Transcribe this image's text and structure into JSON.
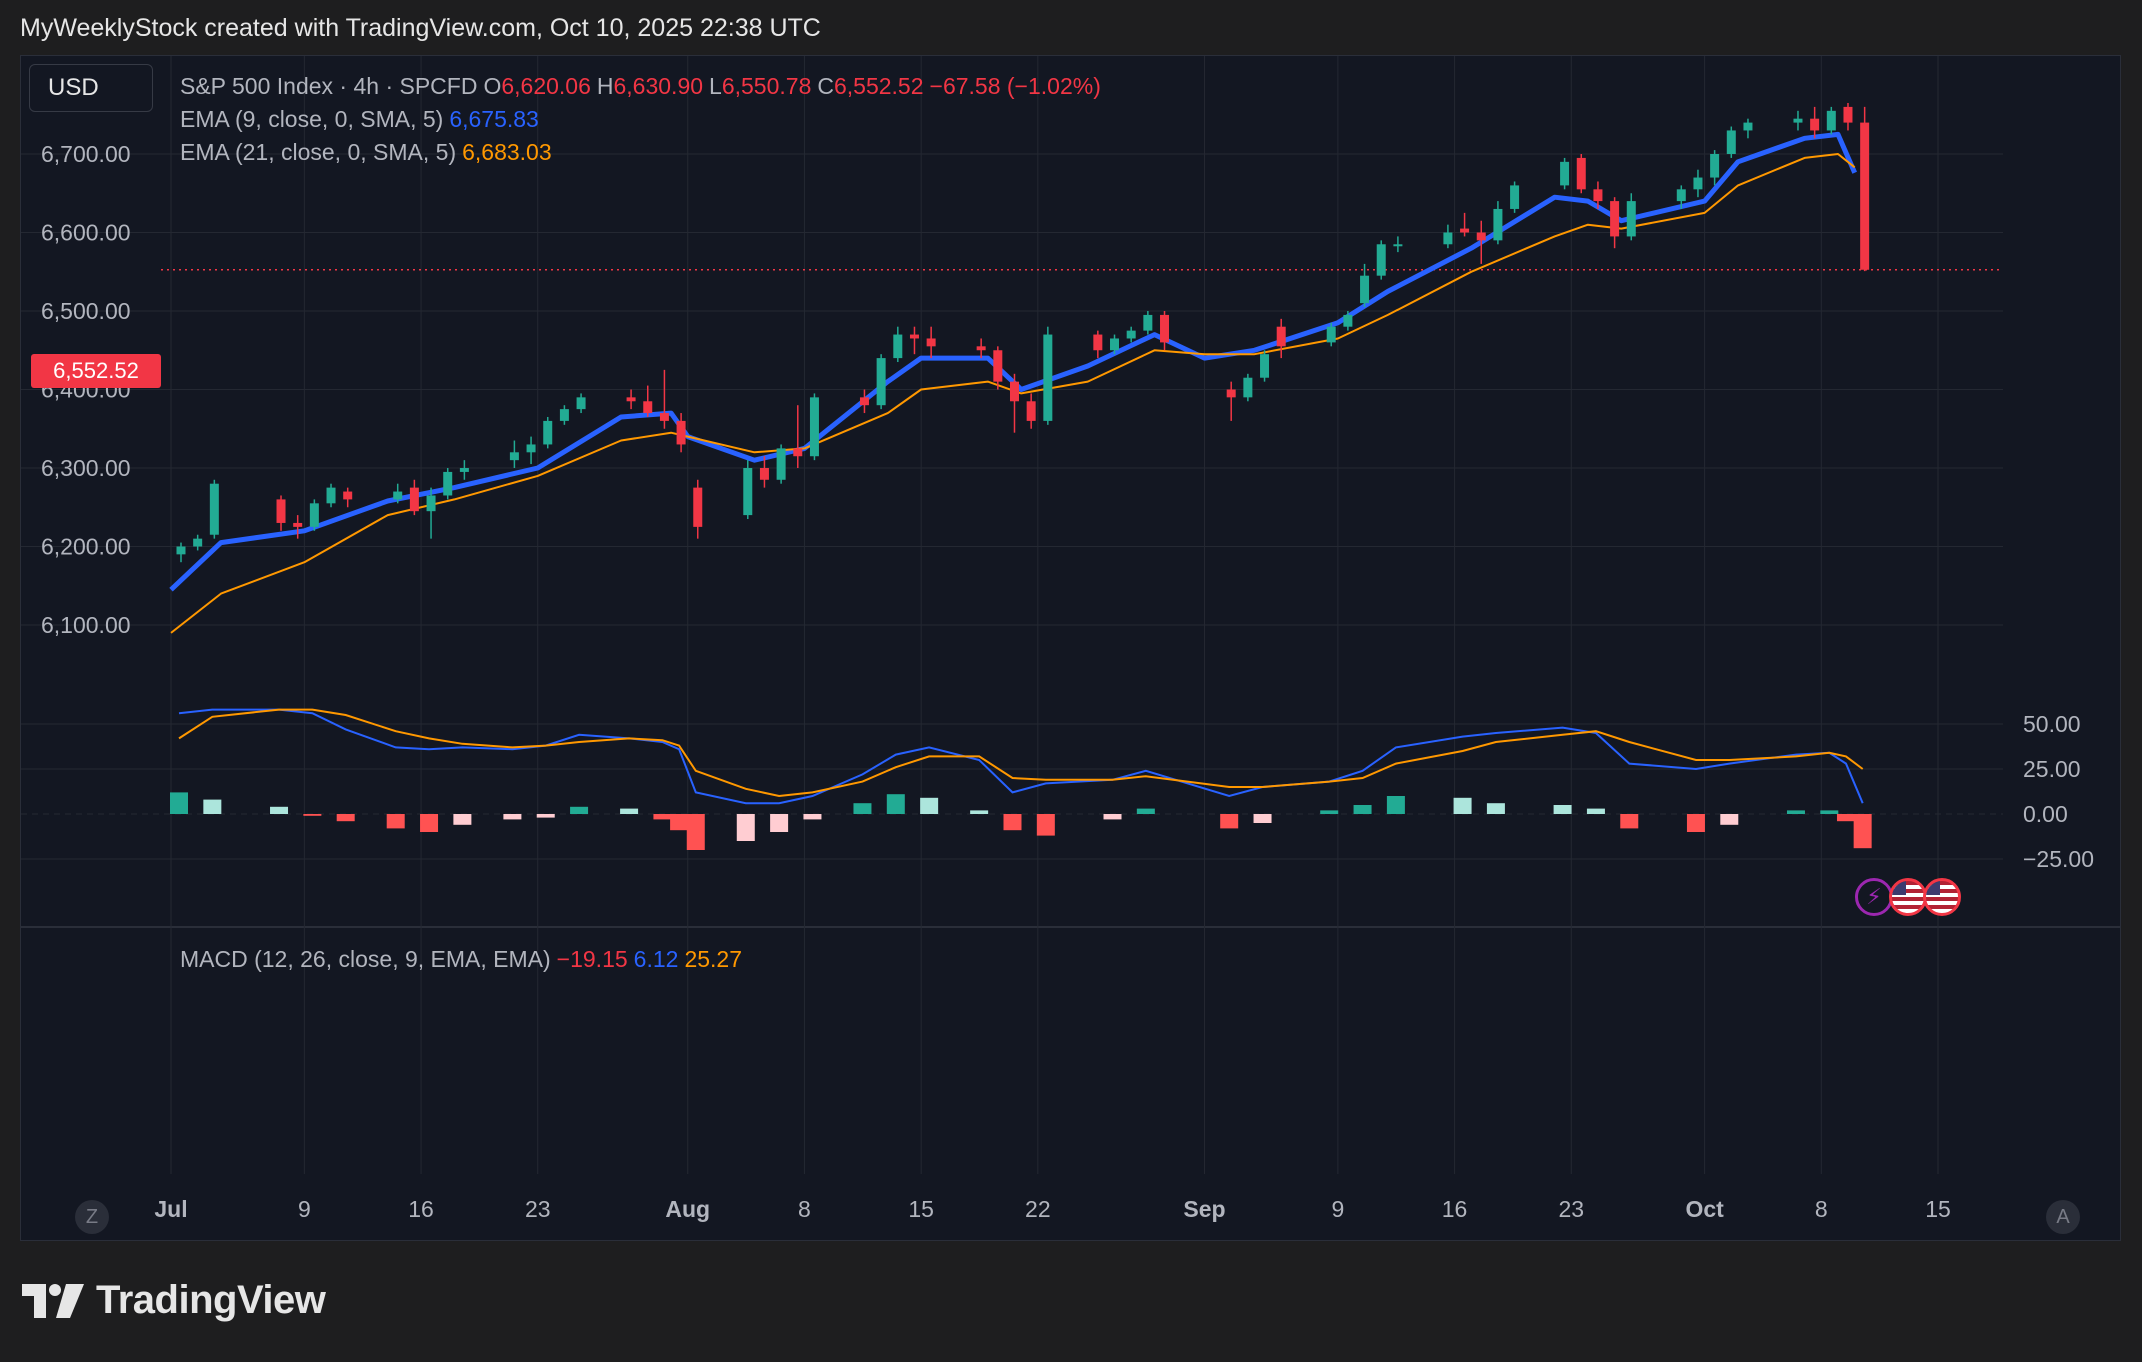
{
  "header": {
    "text": "MyWeeklyStock created with TradingView.com, Oct 10, 2025 22:38 UTC"
  },
  "brand": {
    "name": "TradingView"
  },
  "currency_button": "USD",
  "legend": {
    "symbol": "S&P 500 Index · 4h · SPCFD",
    "o_label": "O",
    "o": "6,620.06",
    "h_label": "H",
    "h": "6,630.90",
    "l_label": "L",
    "l": "6,550.78",
    "c_label": "C",
    "c": "6,552.52",
    "change": "−67.58 (−1.02%)",
    "ema9_label": "EMA (9, close, 0, SMA, 5)",
    "ema9_value": "6,675.83",
    "ema21_label": "EMA (21, close, 0, SMA, 5)",
    "ema21_value": "6,683.03",
    "macd_label": "MACD (12, 26, close, 9, EMA, EMA)",
    "macd_hist": "−19.15",
    "macd_line": "6.12",
    "macd_signal": "25.27"
  },
  "last_price_tag": "6,552.52",
  "scale_buttons": {
    "left": "Z",
    "right": "A"
  },
  "colors": {
    "up": "#22ab94",
    "down": "#f23645",
    "ema9": "#2962ff",
    "ema21": "#ff9800",
    "macd": "#2962ff",
    "signal": "#ff9800",
    "hist_up_strong": "#22ab94",
    "hist_up_weak": "#acE5dc",
    "hist_down_strong": "#ff5252",
    "hist_down_weak": "#ffcdd2",
    "grid": "#242832",
    "bg": "#131722"
  },
  "chart_data": [
    {
      "type": "candlestick",
      "title": "S&P 500 Index · 4h · SPCFD",
      "x_date_range": [
        "2025-07-01",
        "2025-10-10"
      ],
      "ylim": [
        6060,
        6770
      ],
      "yticks": [
        "6,100.00",
        "6,200.00",
        "6,300.00",
        "6,400.00",
        "6,500.00",
        "6,600.00",
        "6,700.00"
      ],
      "ytick_values": [
        6100,
        6200,
        6300,
        6400,
        6500,
        6600,
        6700
      ],
      "xticks": [
        "Jul",
        "9",
        "16",
        "23",
        "Aug",
        "8",
        "15",
        "22",
        "Sep",
        "9",
        "16",
        "23",
        "Oct",
        "8",
        "15"
      ],
      "xtick_dates": [
        "2025-07-01",
        "2025-07-09",
        "2025-07-16",
        "2025-07-23",
        "2025-08-01",
        "2025-08-08",
        "2025-08-15",
        "2025-08-22",
        "2025-09-01",
        "2025-09-09",
        "2025-09-16",
        "2025-09-23",
        "2025-10-01",
        "2025-10-08",
        "2025-10-15"
      ],
      "last_price": 6552.52,
      "candles": [
        [
          "2025-07-01",
          6190,
          6205,
          6180,
          6200
        ],
        [
          "2025-07-02",
          6200,
          6215,
          6195,
          6210
        ],
        [
          "2025-07-03",
          6215,
          6285,
          6210,
          6280
        ],
        [
          "2025-07-07",
          6260,
          6265,
          6220,
          6230
        ],
        [
          "2025-07-08",
          6230,
          6240,
          6210,
          6225
        ],
        [
          "2025-07-09",
          6225,
          6260,
          6220,
          6255
        ],
        [
          "2025-07-10",
          6255,
          6280,
          6250,
          6275
        ],
        [
          "2025-07-11",
          6270,
          6275,
          6250,
          6260
        ],
        [
          "2025-07-14",
          6260,
          6280,
          6255,
          6270
        ],
        [
          "2025-07-15",
          6275,
          6285,
          6240,
          6245
        ],
        [
          "2025-07-16",
          6245,
          6275,
          6210,
          6265
        ],
        [
          "2025-07-17",
          6265,
          6300,
          6260,
          6295
        ],
        [
          "2025-07-18",
          6295,
          6310,
          6285,
          6300
        ],
        [
          "2025-07-21",
          6310,
          6335,
          6300,
          6320
        ],
        [
          "2025-07-22",
          6320,
          6340,
          6305,
          6330
        ],
        [
          "2025-07-23",
          6330,
          6365,
          6325,
          6360
        ],
        [
          "2025-07-24",
          6360,
          6380,
          6355,
          6375
        ],
        [
          "2025-07-25",
          6375,
          6395,
          6370,
          6390
        ],
        [
          "2025-07-28",
          6390,
          6400,
          6375,
          6385
        ],
        [
          "2025-07-29",
          6385,
          6405,
          6365,
          6370
        ],
        [
          "2025-07-30",
          6370,
          6425,
          6350,
          6360
        ],
        [
          "2025-07-31",
          6360,
          6370,
          6320,
          6330
        ],
        [
          "2025-08-01",
          6275,
          6285,
          6210,
          6225
        ],
        [
          "2025-08-04",
          6240,
          6310,
          6235,
          6300
        ],
        [
          "2025-08-05",
          6300,
          6315,
          6275,
          6285
        ],
        [
          "2025-08-06",
          6285,
          6330,
          6280,
          6325
        ],
        [
          "2025-08-07",
          6325,
          6380,
          6300,
          6315
        ],
        [
          "2025-08-08",
          6315,
          6395,
          6310,
          6390
        ],
        [
          "2025-08-11",
          6390,
          6400,
          6370,
          6380
        ],
        [
          "2025-08-12",
          6380,
          6445,
          6375,
          6440
        ],
        [
          "2025-08-13",
          6440,
          6480,
          6435,
          6470
        ],
        [
          "2025-08-14",
          6470,
          6480,
          6445,
          6465
        ],
        [
          "2025-08-15",
          6465,
          6480,
          6440,
          6455
        ],
        [
          "2025-08-18",
          6455,
          6465,
          6440,
          6450
        ],
        [
          "2025-08-19",
          6450,
          6455,
          6400,
          6410
        ],
        [
          "2025-08-20",
          6410,
          6420,
          6345,
          6385
        ],
        [
          "2025-08-21",
          6385,
          6395,
          6350,
          6360
        ],
        [
          "2025-08-22",
          6360,
          6480,
          6355,
          6470
        ],
        [
          "2025-08-25",
          6470,
          6475,
          6440,
          6450
        ],
        [
          "2025-08-26",
          6450,
          6470,
          6445,
          6465
        ],
        [
          "2025-08-27",
          6465,
          6480,
          6460,
          6475
        ],
        [
          "2025-08-28",
          6475,
          6500,
          6470,
          6495
        ],
        [
          "2025-08-29",
          6495,
          6500,
          6450,
          6460
        ],
        [
          "2025-09-02",
          6400,
          6410,
          6360,
          6390
        ],
        [
          "2025-09-03",
          6390,
          6420,
          6385,
          6415
        ],
        [
          "2025-09-04",
          6415,
          6450,
          6410,
          6445
        ],
        [
          "2025-09-05",
          6480,
          6490,
          6440,
          6455
        ],
        [
          "2025-09-08",
          6460,
          6485,
          6455,
          6480
        ],
        [
          "2025-09-09",
          6480,
          6500,
          6475,
          6495
        ],
        [
          "2025-09-10",
          6510,
          6560,
          6505,
          6545
        ],
        [
          "2025-09-11",
          6545,
          6590,
          6540,
          6585
        ],
        [
          "2025-09-12",
          6585,
          6595,
          6575,
          6585
        ],
        [
          "2025-09-15",
          6585,
          6610,
          6580,
          6600
        ],
        [
          "2025-09-16",
          6605,
          6625,
          6595,
          6600
        ],
        [
          "2025-09-17",
          6600,
          6615,
          6560,
          6590
        ],
        [
          "2025-09-18",
          6590,
          6640,
          6585,
          6630
        ],
        [
          "2025-09-19",
          6630,
          6665,
          6625,
          6660
        ],
        [
          "2025-09-22",
          6660,
          6695,
          6655,
          6690
        ],
        [
          "2025-09-23",
          6695,
          6700,
          6650,
          6655
        ],
        [
          "2025-09-24",
          6655,
          6665,
          6630,
          6640
        ],
        [
          "2025-09-25",
          6640,
          6645,
          6580,
          6595
        ],
        [
          "2025-09-26",
          6595,
          6650,
          6590,
          6640
        ],
        [
          "2025-09-29",
          6640,
          6660,
          6630,
          6655
        ],
        [
          "2025-09-30",
          6655,
          6680,
          6645,
          6670
        ],
        [
          "2025-10-01",
          6670,
          6705,
          6660,
          6700
        ],
        [
          "2025-10-02",
          6700,
          6735,
          6695,
          6730
        ],
        [
          "2025-10-03",
          6730,
          6745,
          6720,
          6740
        ],
        [
          "2025-10-06",
          6740,
          6755,
          6730,
          6745
        ],
        [
          "2025-10-07",
          6745,
          6760,
          6720,
          6730
        ],
        [
          "2025-10-08",
          6730,
          6760,
          6725,
          6755
        ],
        [
          "2025-10-09",
          6760,
          6765,
          6730,
          6740
        ],
        [
          "2025-10-10",
          6740,
          6760,
          6550.78,
          6552.52
        ]
      ],
      "series": [
        {
          "name": "EMA (9, close, 0, SMA, 5)",
          "color": "#2962ff",
          "x": [
            "2025-07-01",
            "2025-07-04",
            "2025-07-09",
            "2025-07-14",
            "2025-07-18",
            "2025-07-23",
            "2025-07-28",
            "2025-07-31",
            "2025-08-01",
            "2025-08-05",
            "2025-08-08",
            "2025-08-13",
            "2025-08-15",
            "2025-08-19",
            "2025-08-21",
            "2025-08-25",
            "2025-08-29",
            "2025-09-01",
            "2025-09-04",
            "2025-09-09",
            "2025-09-12",
            "2025-09-17",
            "2025-09-22",
            "2025-09-24",
            "2025-09-26",
            "2025-10-01",
            "2025-10-03",
            "2025-10-07",
            "2025-10-09",
            "2025-10-10"
          ],
          "values": [
            6145,
            6205,
            6220,
            6258,
            6275,
            6300,
            6365,
            6370,
            6340,
            6310,
            6325,
            6410,
            6440,
            6440,
            6400,
            6430,
            6470,
            6440,
            6450,
            6485,
            6525,
            6580,
            6645,
            6640,
            6615,
            6640,
            6690,
            6720,
            6725,
            6676
          ]
        },
        {
          "name": "EMA (21, close, 0, SMA, 5)",
          "color": "#ff9800",
          "x": [
            "2025-07-01",
            "2025-07-04",
            "2025-07-09",
            "2025-07-14",
            "2025-07-18",
            "2025-07-23",
            "2025-07-28",
            "2025-07-31",
            "2025-08-01",
            "2025-08-05",
            "2025-08-08",
            "2025-08-13",
            "2025-08-15",
            "2025-08-19",
            "2025-08-21",
            "2025-08-25",
            "2025-08-29",
            "2025-09-01",
            "2025-09-04",
            "2025-09-09",
            "2025-09-12",
            "2025-09-17",
            "2025-09-22",
            "2025-09-24",
            "2025-09-26",
            "2025-10-01",
            "2025-10-03",
            "2025-10-07",
            "2025-10-09",
            "2025-10-10"
          ],
          "values": [
            6090,
            6140,
            6180,
            6240,
            6260,
            6290,
            6335,
            6345,
            6340,
            6320,
            6325,
            6370,
            6400,
            6410,
            6395,
            6410,
            6450,
            6445,
            6445,
            6465,
            6495,
            6550,
            6595,
            6610,
            6605,
            6625,
            6660,
            6695,
            6700,
            6683
          ]
        }
      ]
    },
    {
      "type": "bar",
      "title": "MACD (12, 26, close, 9, EMA, EMA)",
      "ylim": [
        -30,
        62
      ],
      "yticks": [
        "50.00",
        "25.00",
        "0.00",
        "−25.00"
      ],
      "ytick_values": [
        50,
        25,
        0,
        -25
      ],
      "x": [
        "2025-07-01",
        "2025-07-03",
        "2025-07-07",
        "2025-07-09",
        "2025-07-11",
        "2025-07-14",
        "2025-07-16",
        "2025-07-18",
        "2025-07-21",
        "2025-07-23",
        "2025-07-25",
        "2025-07-28",
        "2025-07-30",
        "2025-07-31",
        "2025-08-01",
        "2025-08-04",
        "2025-08-06",
        "2025-08-08",
        "2025-08-11",
        "2025-08-13",
        "2025-08-15",
        "2025-08-18",
        "2025-08-20",
        "2025-08-22",
        "2025-08-26",
        "2025-08-28",
        "2025-09-02",
        "2025-09-04",
        "2025-09-08",
        "2025-09-10",
        "2025-09-12",
        "2025-09-16",
        "2025-09-18",
        "2025-09-22",
        "2025-09-24",
        "2025-09-26",
        "2025-09-30",
        "2025-10-02",
        "2025-10-06",
        "2025-10-08",
        "2025-10-09",
        "2025-10-10"
      ],
      "series": [
        {
          "name": "MACD",
          "color": "#2962ff",
          "values": [
            56,
            58,
            58,
            56,
            47,
            37,
            36,
            37,
            36,
            38,
            44,
            42,
            40,
            36,
            12,
            6,
            6,
            10,
            22,
            33,
            37,
            30,
            12,
            17,
            19,
            24,
            10,
            15,
            18,
            24,
            37,
            43,
            45,
            48,
            45,
            28,
            25,
            28,
            33,
            34,
            28,
            6
          ]
        },
        {
          "name": "Signal",
          "color": "#ff9800",
          "values": [
            42,
            54,
            58,
            58,
            55,
            46,
            42,
            39,
            37,
            38,
            40,
            42,
            41,
            38,
            24,
            14,
            10,
            12,
            18,
            26,
            32,
            32,
            20,
            19,
            19,
            21,
            15,
            15,
            18,
            20,
            28,
            35,
            40,
            44,
            46,
            40,
            30,
            30,
            32,
            34,
            32,
            25
          ]
        },
        {
          "name": "Histogram",
          "type": "bar",
          "values": [
            12,
            8,
            4,
            -1,
            -4,
            -8,
            -10,
            -6,
            -3,
            -2,
            4,
            3,
            -3,
            -9,
            -20,
            -15,
            -10,
            -3,
            6,
            11,
            9,
            2,
            -9,
            -12,
            -3,
            3,
            -8,
            -5,
            2,
            5,
            10,
            9,
            6,
            5,
            3,
            -8,
            -10,
            -6,
            2,
            2,
            -4,
            -19
          ]
        }
      ]
    }
  ]
}
